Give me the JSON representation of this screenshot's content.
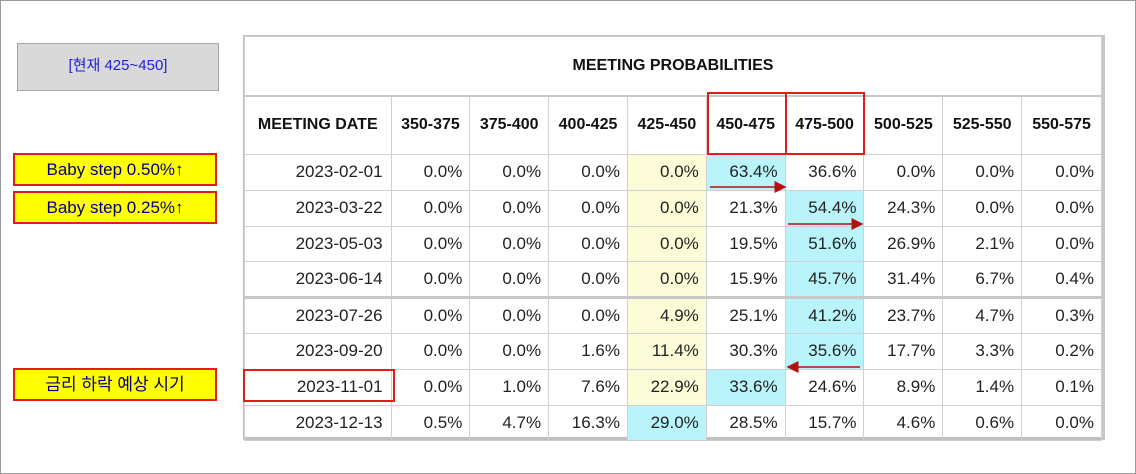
{
  "current_label": "[현재 425~450]",
  "notes": [
    {
      "text": "Baby step 0.50%↑"
    },
    {
      "text": "Baby step 0.25%↑"
    },
    {
      "text": "금리 하락 예상 시기"
    }
  ],
  "chart_data": {
    "type": "table",
    "title": "MEETING PROBABILITIES",
    "row_header": "MEETING DATE",
    "columns": [
      "350-375",
      "375-400",
      "400-425",
      "425-450",
      "450-475",
      "475-500",
      "500-525",
      "525-550",
      "550-575"
    ],
    "rows": [
      {
        "date": "2023-02-01",
        "values": [
          "0.0%",
          "0.0%",
          "0.0%",
          "0.0%",
          "63.4%",
          "36.6%",
          "0.0%",
          "0.0%",
          "0.0%"
        ],
        "highlight": 4
      },
      {
        "date": "2023-03-22",
        "values": [
          "0.0%",
          "0.0%",
          "0.0%",
          "0.0%",
          "21.3%",
          "54.4%",
          "24.3%",
          "0.0%",
          "0.0%"
        ],
        "highlight": 5
      },
      {
        "date": "2023-05-03",
        "values": [
          "0.0%",
          "0.0%",
          "0.0%",
          "0.0%",
          "19.5%",
          "51.6%",
          "26.9%",
          "2.1%",
          "0.0%"
        ],
        "highlight": 5
      },
      {
        "date": "2023-06-14",
        "values": [
          "0.0%",
          "0.0%",
          "0.0%",
          "0.0%",
          "15.9%",
          "45.7%",
          "31.4%",
          "6.7%",
          "0.4%"
        ],
        "highlight": 5
      },
      {
        "date": "2023-07-26",
        "values": [
          "0.0%",
          "0.0%",
          "0.0%",
          "4.9%",
          "25.1%",
          "41.2%",
          "23.7%",
          "4.7%",
          "0.3%"
        ],
        "highlight": 5
      },
      {
        "date": "2023-09-20",
        "values": [
          "0.0%",
          "0.0%",
          "1.6%",
          "11.4%",
          "30.3%",
          "35.6%",
          "17.7%",
          "3.3%",
          "0.2%"
        ],
        "highlight": 5
      },
      {
        "date": "2023-11-01",
        "values": [
          "0.0%",
          "1.0%",
          "7.6%",
          "22.9%",
          "33.6%",
          "24.6%",
          "8.9%",
          "1.4%",
          "0.1%"
        ],
        "highlight": 4
      },
      {
        "date": "2023-12-13",
        "values": [
          "0.5%",
          "4.7%",
          "16.3%",
          "29.0%",
          "28.5%",
          "15.7%",
          "4.6%",
          "0.6%",
          "0.0%"
        ],
        "highlight": 3
      }
    ],
    "current_range_column": "425-450",
    "colors": {
      "current_range": "#fcfcd8",
      "highest_probability": "#b8f4fa",
      "annotation_red": "#e41b1b",
      "note_fill": "#ffff00",
      "note_text": "#000080"
    }
  }
}
